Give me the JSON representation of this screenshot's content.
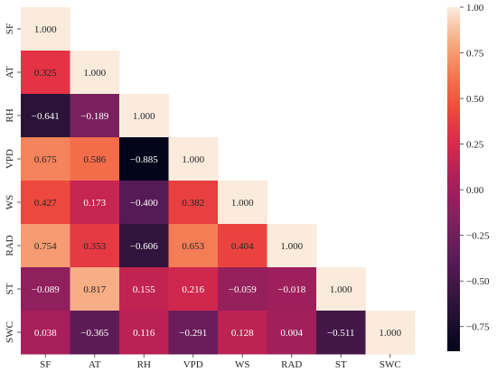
{
  "chart_data": {
    "type": "heatmap",
    "title": "",
    "xlabel": "",
    "ylabel": "",
    "variables": [
      "SF",
      "AT",
      "RH",
      "VPD",
      "WS",
      "RAD",
      "ST",
      "SWC"
    ],
    "lower_triangle": [
      [
        1.0
      ],
      [
        0.325,
        1.0
      ],
      [
        -0.641,
        -0.189,
        1.0
      ],
      [
        0.675,
        0.586,
        -0.885,
        1.0
      ],
      [
        0.427,
        0.173,
        -0.4,
        0.382,
        1.0
      ],
      [
        0.754,
        0.353,
        -0.606,
        0.653,
        0.404,
        1.0
      ],
      [
        -0.089,
        0.817,
        0.155,
        0.216,
        -0.059,
        -0.018,
        1.0
      ],
      [
        0.038,
        -0.365,
        0.116,
        -0.291,
        0.128,
        0.004,
        -0.511,
        1.0
      ]
    ],
    "value_labels": [
      [
        "1.000"
      ],
      [
        "0.325",
        "1.000"
      ],
      [
        "−0.641",
        "−0.189",
        "1.000"
      ],
      [
        "0.675",
        "0.586",
        "−0.885",
        "1.000"
      ],
      [
        "0.427",
        "0.173",
        "−0.400",
        "0.382",
        "1.000"
      ],
      [
        "0.754",
        "0.353",
        "−0.606",
        "0.653",
        "0.404",
        "1.000"
      ],
      [
        "−0.089",
        "0.817",
        "0.155",
        "0.216",
        "−0.059",
        "−0.018",
        "1.000"
      ],
      [
        "0.038",
        "−0.365",
        "0.116",
        "−0.291",
        "0.128",
        "0.004",
        "−0.511",
        "1.000"
      ]
    ],
    "colorbar": {
      "vmin": -0.885,
      "vmax": 1.0,
      "ticks": [
        1.0,
        0.75,
        0.5,
        0.25,
        0.0,
        -0.25,
        -0.5,
        -0.75
      ],
      "tick_labels": [
        "1.00",
        "0.75",
        "0.50",
        "0.25",
        "0.00",
        "−0.25",
        "−0.50",
        "−0.75"
      ]
    },
    "colormap": "rocket",
    "grid": false
  }
}
